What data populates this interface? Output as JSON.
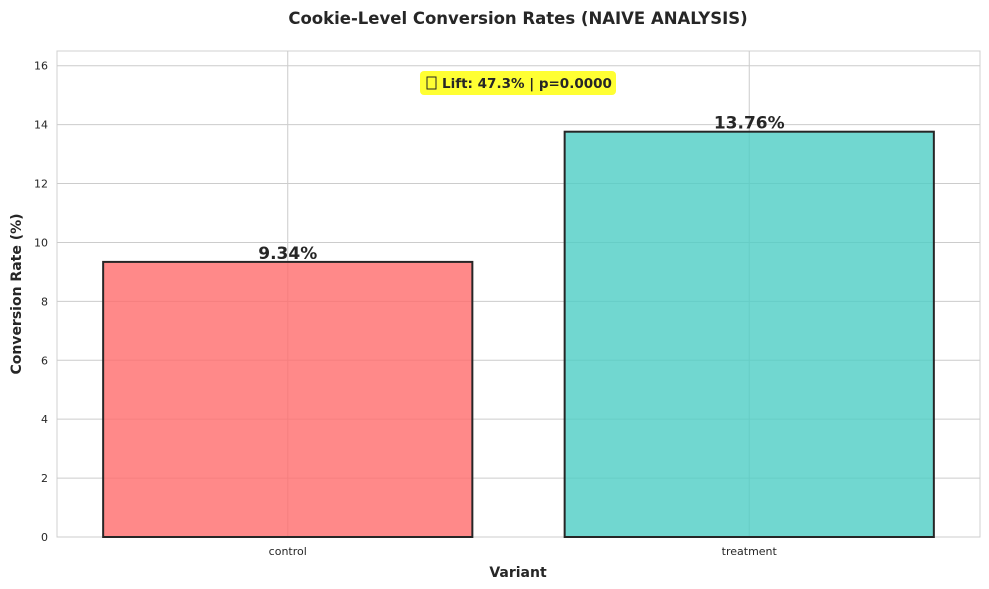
{
  "chart_data": {
    "type": "bar",
    "title": "Cookie-Level Conversion Rates (NAIVE ANALYSIS)",
    "xlabel": "Variant",
    "ylabel": "Conversion Rate (%)",
    "categories": [
      "control",
      "treatment"
    ],
    "values": [
      9.34,
      13.76
    ],
    "data_labels": [
      "9.34%",
      "13.76%"
    ],
    "colors": [
      "#ff6b6b",
      "#4ecdc4"
    ],
    "ylim": [
      0,
      16.5
    ],
    "yticks": [
      0,
      2,
      4,
      6,
      8,
      10,
      12,
      14,
      16
    ],
    "grid": true,
    "annotation": {
      "icon": "chart-icon",
      "text": "Lift: 47.3% | p=0.0000",
      "background": "#ffff33"
    }
  }
}
